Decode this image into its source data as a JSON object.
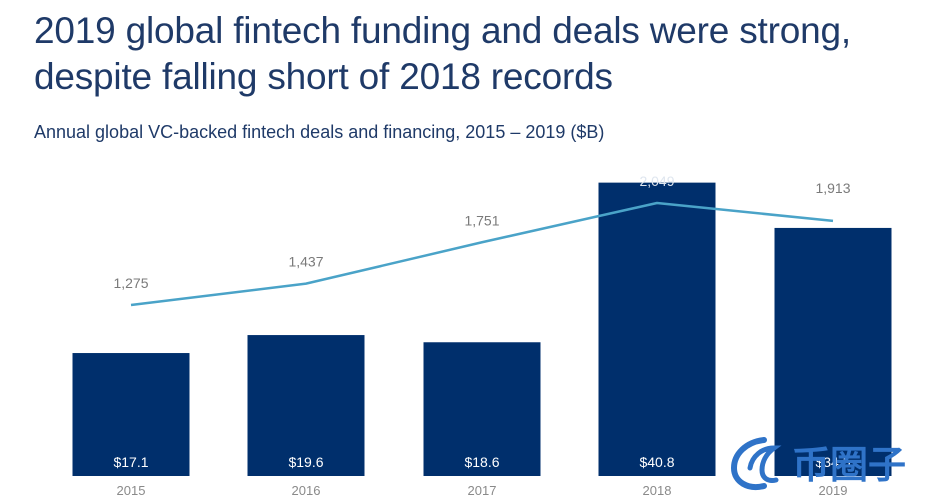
{
  "title": "2019 global fintech funding and deals were strong, despite falling short of 2018 records",
  "subtitle": "Annual global VC-backed fintech deals and financing, 2015 – 2019 ($B)",
  "colors": {
    "bar": "#002f6c",
    "line": "#4aa3c8",
    "title": "#1f3a68",
    "deal_label": "#7a7a7a",
    "axis_label": "#8a8a8a",
    "bar_label": "#ffffff"
  },
  "watermark": {
    "text": "币圈子",
    "color": "#2f73c8"
  },
  "chart_data": {
    "type": "bar",
    "categories": [
      "2015",
      "2016",
      "2017",
      "2018",
      "2019"
    ],
    "series": [
      {
        "type": "bar",
        "values": [
          17.1,
          19.6,
          18.6,
          40.8,
          34.5
        ],
        "labels": [
          "$17.1",
          "$19.6",
          "$18.6",
          "$40.8",
          "$34.5"
        ]
      },
      {
        "type": "line",
        "values": [
          1275,
          1437,
          1751,
          2049,
          1913
        ],
        "labels": [
          "1,275",
          "1,437",
          "1,751",
          "2,049",
          "1,913"
        ]
      }
    ],
    "title": "2019 global fintech funding and deals were strong, despite falling short of 2018 records",
    "subtitle": "Annual global VC-backed fintech deals and financing, 2015 – 2019 ($B)",
    "xlabel": "",
    "ylabel": "",
    "ylim": [
      0,
      42
    ],
    "y2lim": [
      0,
      2300
    ],
    "grid": false
  }
}
